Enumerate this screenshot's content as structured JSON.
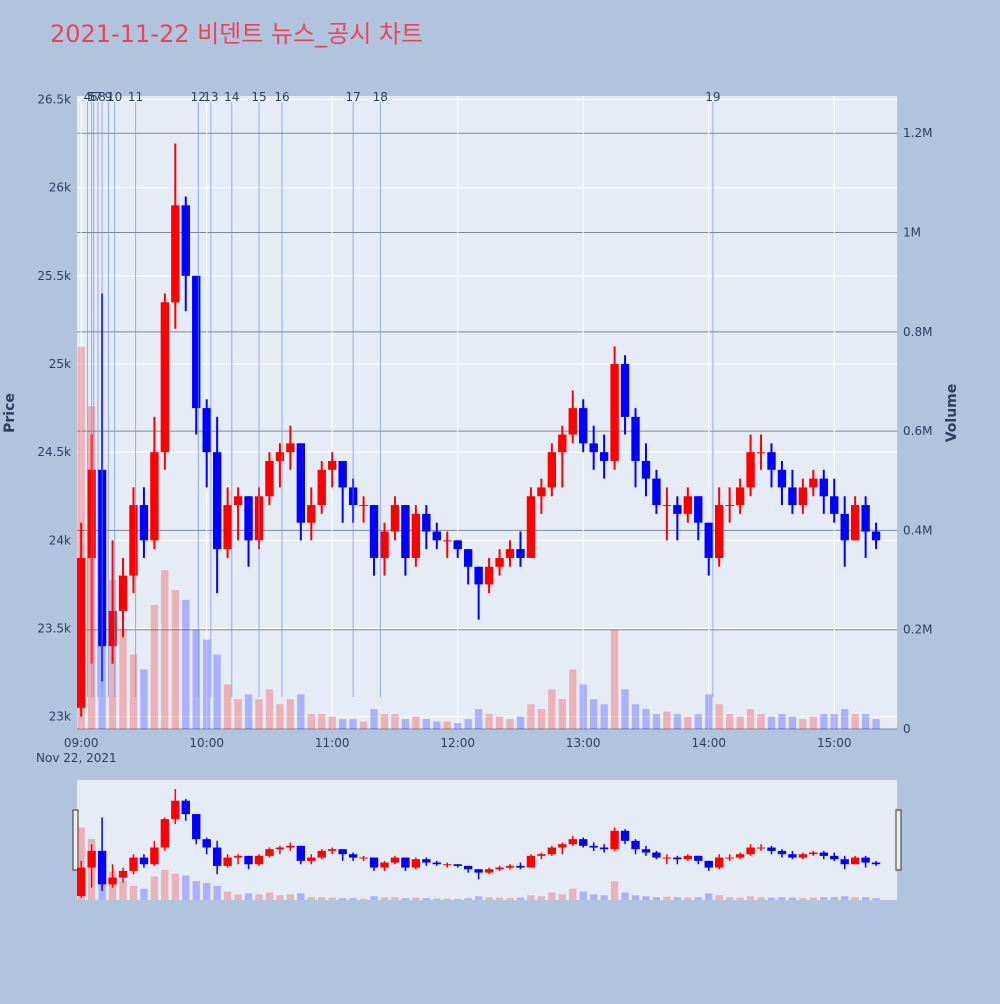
{
  "chart_data": {
    "type": "candlestick",
    "title": "2021-11-22 비덴트 뉴스_공시 차트",
    "y_label": "Price",
    "y2_label": "Volume",
    "x_date_label": "Nov 22, 2021",
    "increasing_color": "#ff0000",
    "decreasing_color": "#0000ff",
    "xlim": [
      "2021-11-22 08:58",
      "2021-11-22 15:30"
    ],
    "xticks": [
      {
        "value": "2021-11-22 09:00",
        "label": "09:00"
      },
      {
        "value": "2021-11-22 10:00",
        "label": "10:00"
      },
      {
        "value": "2021-11-22 11:00",
        "label": "11:00"
      },
      {
        "value": "2021-11-22 12:00",
        "label": "12:00"
      },
      {
        "value": "2021-11-22 13:00",
        "label": "13:00"
      },
      {
        "value": "2021-11-22 14:00",
        "label": "14:00"
      },
      {
        "value": "2021-11-22 15:00",
        "label": "15:00"
      }
    ],
    "ylim": [
      22930,
      26520
    ],
    "yticks": [
      {
        "value": 23000,
        "label": "23k"
      },
      {
        "value": 23500,
        "label": "23.5k"
      },
      {
        "value": 24000,
        "label": "24k"
      },
      {
        "value": 24500,
        "label": "24.5k"
      },
      {
        "value": 25000,
        "label": "25k"
      },
      {
        "value": 25500,
        "label": "25.5k"
      },
      {
        "value": 26000,
        "label": "26k"
      },
      {
        "value": 26500,
        "label": "26.5k"
      }
    ],
    "y2lim": [
      0,
      1275000
    ],
    "y2ticks": [
      0,
      {
        "value": 200000,
        "label": "0.2M"
      },
      {
        "value": 400000,
        "label": "0.4M"
      },
      {
        "value": 600000,
        "label": "0.6M"
      },
      {
        "value": 800000,
        "label": "0.8M"
      },
      {
        "value": 1000000,
        "label": "1M"
      },
      {
        "value": 1200000,
        "label": "1.2M"
      }
    ],
    "grid": true,
    "annotations": [
      {
        "label": "4",
        "x": "2021-11-22 09:03"
      },
      {
        "label": "5",
        "x": "2021-11-22 09:05"
      },
      {
        "label": "6",
        "x": "2021-11-22 09:06"
      },
      {
        "label": "7",
        "x": "2021-11-22 09:08"
      },
      {
        "label": "8",
        "x": "2021-11-22 09:10"
      },
      {
        "label": "9",
        "x": "2021-11-22 09:13"
      },
      {
        "label": "10",
        "x": "2021-11-22 09:16"
      },
      {
        "label": "11",
        "x": "2021-11-22 09:26"
      },
      {
        "label": "12",
        "x": "2021-11-22 09:56"
      },
      {
        "label": "13",
        "x": "2021-11-22 10:02"
      },
      {
        "label": "14",
        "x": "2021-11-22 10:12"
      },
      {
        "label": "15",
        "x": "2021-11-22 10:25"
      },
      {
        "label": "16",
        "x": "2021-11-22 10:36"
      },
      {
        "label": "17",
        "x": "2021-11-22 11:10"
      },
      {
        "label": "18",
        "x": "2021-11-22 11:23"
      },
      {
        "label": "19",
        "x": "2021-11-22 14:02"
      }
    ],
    "x": [
      "2021-11-22 09:00",
      "2021-11-22 09:05",
      "2021-11-22 09:10",
      "2021-11-22 09:15",
      "2021-11-22 09:20",
      "2021-11-22 09:25",
      "2021-11-22 09:30",
      "2021-11-22 09:35",
      "2021-11-22 09:40",
      "2021-11-22 09:45",
      "2021-11-22 09:50",
      "2021-11-22 09:55",
      "2021-11-22 10:00",
      "2021-11-22 10:05",
      "2021-11-22 10:10",
      "2021-11-22 10:15",
      "2021-11-22 10:20",
      "2021-11-22 10:25",
      "2021-11-22 10:30",
      "2021-11-22 10:35",
      "2021-11-22 10:40",
      "2021-11-22 10:45",
      "2021-11-22 10:50",
      "2021-11-22 10:55",
      "2021-11-22 11:00",
      "2021-11-22 11:05",
      "2021-11-22 11:10",
      "2021-11-22 11:15",
      "2021-11-22 11:20",
      "2021-11-22 11:25",
      "2021-11-22 11:30",
      "2021-11-22 11:35",
      "2021-11-22 11:40",
      "2021-11-22 11:45",
      "2021-11-22 11:50",
      "2021-11-22 11:55",
      "2021-11-22 12:00",
      "2021-11-22 12:05",
      "2021-11-22 12:10",
      "2021-11-22 12:15",
      "2021-11-22 12:20",
      "2021-11-22 12:25",
      "2021-11-22 12:30",
      "2021-11-22 12:35",
      "2021-11-22 12:40",
      "2021-11-22 12:45",
      "2021-11-22 12:50",
      "2021-11-22 12:55",
      "2021-11-22 13:00",
      "2021-11-22 13:05",
      "2021-11-22 13:10",
      "2021-11-22 13:15",
      "2021-11-22 13:20",
      "2021-11-22 13:25",
      "2021-11-22 13:30",
      "2021-11-22 13:35",
      "2021-11-22 13:40",
      "2021-11-22 13:45",
      "2021-11-22 13:50",
      "2021-11-22 13:55",
      "2021-11-22 14:00",
      "2021-11-22 14:05",
      "2021-11-22 14:10",
      "2021-11-22 14:15",
      "2021-11-22 14:20",
      "2021-11-22 14:25",
      "2021-11-22 14:30",
      "2021-11-22 14:35",
      "2021-11-22 14:40",
      "2021-11-22 14:45",
      "2021-11-22 14:50",
      "2021-11-22 14:55",
      "2021-11-22 15:00",
      "2021-11-22 15:05",
      "2021-11-22 15:10",
      "2021-11-22 15:15",
      "2021-11-22 15:20"
    ],
    "open": [
      23050,
      23900,
      24400,
      23400,
      23600,
      23800,
      24200,
      24000,
      24500,
      25350,
      25900,
      25500,
      24750,
      24500,
      23950,
      24200,
      24250,
      24000,
      24250,
      24450,
      24500,
      24550,
      24100,
      24200,
      24400,
      24450,
      24300,
      24200,
      24200,
      23900,
      24050,
      24200,
      23900,
      24150,
      24050,
      24000,
      24000,
      23950,
      23850,
      23750,
      23850,
      23900,
      23950,
      23900,
      24250,
      24300,
      24500,
      24600,
      24750,
      24550,
      24500,
      24450,
      25000,
      24700,
      24450,
      24350,
      24200,
      24200,
      24150,
      24250,
      24100,
      23900,
      24200,
      24200,
      24300,
      24500,
      24500,
      24400,
      24300,
      24200,
      24300,
      24350,
      24250,
      24150,
      24000,
      24200,
      24050
    ],
    "high": [
      24100,
      24600,
      25400,
      24000,
      23900,
      24300,
      24300,
      24700,
      25400,
      26250,
      25950,
      25500,
      24800,
      24700,
      24300,
      24300,
      24250,
      24300,
      24500,
      24550,
      24650,
      24550,
      24300,
      24450,
      24500,
      24450,
      24350,
      24250,
      24200,
      24100,
      24250,
      24200,
      24200,
      24200,
      24100,
      24050,
      24000,
      23950,
      23850,
      23900,
      23950,
      24000,
      24050,
      24300,
      24350,
      24550,
      24650,
      24850,
      24800,
      24650,
      24600,
      25100,
      25050,
      24750,
      24550,
      24400,
      24300,
      24250,
      24300,
      24250,
      24100,
      24300,
      24300,
      24350,
      24600,
      24600,
      24550,
      24450,
      24400,
      24350,
      24400,
      24400,
      24350,
      24250,
      24250,
      24250,
      24100
    ],
    "low": [
      23000,
      23300,
      23200,
      23300,
      23450,
      23700,
      23900,
      23950,
      24400,
      25200,
      25300,
      24600,
      24300,
      23700,
      23900,
      24000,
      23850,
      23950,
      24200,
      24300,
      24400,
      24000,
      24000,
      24150,
      24300,
      24100,
      24100,
      24100,
      23800,
      23800,
      24000,
      23800,
      23850,
      23950,
      23950,
      23900,
      23900,
      23750,
      23550,
      23700,
      23800,
      23850,
      23850,
      23900,
      24150,
      24250,
      24300,
      24550,
      24500,
      24400,
      24350,
      24400,
      24600,
      24300,
      24250,
      24150,
      24000,
      24000,
      24100,
      24000,
      23800,
      23850,
      24100,
      24150,
      24250,
      24400,
      24300,
      24200,
      24150,
      24150,
      24250,
      24150,
      24100,
      23850,
      24000,
      23900,
      23950
    ],
    "close": [
      23900,
      24400,
      23400,
      23600,
      23800,
      24200,
      24000,
      24500,
      25350,
      25900,
      25500,
      24750,
      24500,
      23950,
      24200,
      24250,
      24000,
      24250,
      24450,
      24500,
      24550,
      24100,
      24200,
      24400,
      24450,
      24300,
      24200,
      24200,
      23900,
      24050,
      24200,
      23900,
      24150,
      24050,
      24000,
      24000,
      23950,
      23850,
      23750,
      23850,
      23900,
      23950,
      23900,
      24250,
      24300,
      24500,
      24600,
      24750,
      24550,
      24500,
      24450,
      25000,
      24700,
      24450,
      24350,
      24200,
      24200,
      24150,
      24250,
      24100,
      23900,
      24200,
      24200,
      24300,
      24500,
      24500,
      24400,
      24300,
      24200,
      24300,
      24350,
      24250,
      24150,
      24000,
      24200,
      24050,
      24000
    ],
    "volume": [
      770000,
      650000,
      520000,
      300000,
      200000,
      150000,
      120000,
      250000,
      320000,
      280000,
      260000,
      200000,
      180000,
      150000,
      90000,
      60000,
      70000,
      60000,
      80000,
      50000,
      60000,
      70000,
      30000,
      30000,
      25000,
      20000,
      20000,
      15000,
      40000,
      30000,
      30000,
      20000,
      25000,
      20000,
      15000,
      15000,
      12000,
      20000,
      40000,
      30000,
      25000,
      20000,
      25000,
      50000,
      40000,
      80000,
      60000,
      120000,
      90000,
      60000,
      50000,
      200000,
      80000,
      50000,
      40000,
      30000,
      35000,
      30000,
      25000,
      30000,
      70000,
      50000,
      30000,
      25000,
      40000,
      30000,
      25000,
      30000,
      25000,
      20000,
      25000,
      30000,
      30000,
      40000,
      30000,
      30000,
      20000
    ]
  }
}
